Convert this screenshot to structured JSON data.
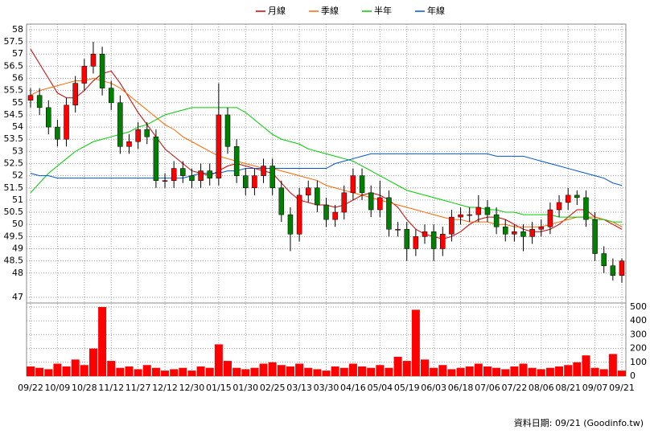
{
  "chart_data": [
    {
      "type": "candlestick",
      "open": [
        55.1,
        55.3,
        54.8,
        54.0,
        53.5,
        54.9,
        55.8,
        56.5,
        57.0,
        55.6,
        55.0,
        53.2,
        53.4,
        53.9,
        53.6,
        51.8,
        51.8,
        52.3,
        52.0,
        51.8,
        52.2,
        51.9,
        54.5,
        53.2,
        52.0,
        51.5,
        52.0,
        52.4,
        51.5,
        50.4,
        49.6,
        51.2,
        51.5,
        50.8,
        50.2,
        50.5,
        51.3,
        52.0,
        51.3,
        50.6,
        51.1,
        49.8,
        49.8,
        49.0,
        49.5,
        49.7,
        49.0,
        49.6,
        50.3,
        50.4,
        50.4,
        50.7,
        50.4,
        49.9,
        49.6,
        49.7,
        49.5,
        49.8,
        49.9,
        50.6,
        50.9,
        51.2,
        51.1,
        50.2,
        48.8,
        48.3,
        47.9
      ],
      "high": [
        55.6,
        55.6,
        55.1,
        54.3,
        55.2,
        56.1,
        56.8,
        57.5,
        57.3,
        55.9,
        55.3,
        53.7,
        54.2,
        54.2,
        53.9,
        52.1,
        52.6,
        52.6,
        52.3,
        52.5,
        52.5,
        55.8,
        54.8,
        53.5,
        52.3,
        52.3,
        52.7,
        52.7,
        51.8,
        50.7,
        51.5,
        51.8,
        51.8,
        51.1,
        50.8,
        51.6,
        52.3,
        52.3,
        51.6,
        51.8,
        51.4,
        50.1,
        50.1,
        49.8,
        50.0,
        50.0,
        49.9,
        50.6,
        50.7,
        50.7,
        51.2,
        51.0,
        50.7,
        50.2,
        50.0,
        50.0,
        50.1,
        50.2,
        50.9,
        51.2,
        51.5,
        51.4,
        51.4,
        50.5,
        49.1,
        48.6,
        48.6
      ],
      "low": [
        54.8,
        54.5,
        53.7,
        53.2,
        53.2,
        54.6,
        55.5,
        56.2,
        55.3,
        54.7,
        52.9,
        52.9,
        53.1,
        53.3,
        51.5,
        51.5,
        51.5,
        51.7,
        51.5,
        51.5,
        51.6,
        51.6,
        52.9,
        51.7,
        51.2,
        51.2,
        51.7,
        51.2,
        50.1,
        48.9,
        49.3,
        50.9,
        50.5,
        49.9,
        49.9,
        50.2,
        51.0,
        51.0,
        50.3,
        50.3,
        49.5,
        49.5,
        48.5,
        48.7,
        49.2,
        48.5,
        48.7,
        49.3,
        50.0,
        50.1,
        50.1,
        50.1,
        49.6,
        49.3,
        49.3,
        48.9,
        49.2,
        49.5,
        49.6,
        50.3,
        50.6,
        50.8,
        49.9,
        48.5,
        48.0,
        47.7,
        47.6
      ],
      "close": [
        55.3,
        54.8,
        54.0,
        53.5,
        54.9,
        55.8,
        56.5,
        57.0,
        55.6,
        55.0,
        53.2,
        53.4,
        53.9,
        53.6,
        51.8,
        51.8,
        52.3,
        52.0,
        51.8,
        52.2,
        51.9,
        54.5,
        53.2,
        52.0,
        51.5,
        52.0,
        52.4,
        51.5,
        50.4,
        49.6,
        51.2,
        51.5,
        50.8,
        50.2,
        50.5,
        51.3,
        52.0,
        51.3,
        50.6,
        51.1,
        49.8,
        49.8,
        49.0,
        49.5,
        49.7,
        49.0,
        49.6,
        50.3,
        50.4,
        50.4,
        50.7,
        50.4,
        49.9,
        49.6,
        49.7,
        49.5,
        49.8,
        49.9,
        50.6,
        50.9,
        51.2,
        51.1,
        50.2,
        48.8,
        48.3,
        47.9,
        48.5
      ],
      "up_color": "#ff0000",
      "down_color": "#008000",
      "series": [
        {
          "name": "月線",
          "color": "#cc0000",
          "values": [
            57.2,
            56.6,
            56.0,
            55.4,
            55.2,
            55.2,
            55.5,
            55.9,
            56.2,
            56.3,
            55.8,
            55.2,
            54.6,
            54.1,
            53.6,
            53.1,
            52.8,
            52.5,
            52.2,
            52.1,
            52.0,
            52.2,
            52.4,
            52.5,
            52.4,
            52.3,
            52.2,
            52.1,
            51.7,
            51.3,
            51.0,
            50.9,
            50.8,
            50.8,
            50.7,
            50.8,
            51.0,
            51.2,
            51.3,
            51.2,
            51.0,
            50.7,
            50.2,
            49.8,
            49.6,
            49.5,
            49.4,
            49.5,
            49.7,
            50.0,
            50.2,
            50.3,
            50.3,
            50.2,
            50.0,
            49.8,
            49.7,
            49.7,
            49.8,
            50.0,
            50.3,
            50.6,
            50.6,
            50.3,
            50.2,
            50.0,
            49.8
          ]
        },
        {
          "name": "季線",
          "color": "#ff6600",
          "values": [
            55.3,
            55.5,
            55.6,
            55.7,
            55.8,
            55.9,
            55.9,
            56.0,
            55.9,
            55.8,
            55.6,
            55.3,
            55.0,
            54.7,
            54.4,
            54.1,
            53.9,
            53.6,
            53.4,
            53.2,
            53.0,
            52.8,
            52.7,
            52.6,
            52.5,
            52.4,
            52.3,
            52.3,
            52.2,
            52.1,
            52.0,
            51.9,
            51.8,
            51.6,
            51.5,
            51.4,
            51.3,
            51.2,
            51.1,
            51.0,
            50.9,
            50.8,
            50.7,
            50.6,
            50.5,
            50.4,
            50.3,
            50.2,
            50.2,
            50.1,
            50.1,
            50.1,
            50.0,
            50.0,
            49.9,
            49.9,
            49.9,
            49.9,
            50.0,
            50.1,
            50.2,
            50.3,
            50.3,
            50.3,
            50.2,
            50.1,
            49.9
          ]
        },
        {
          "name": "半年",
          "color": "#00cc00",
          "values": [
            51.3,
            51.7,
            52.1,
            52.4,
            52.7,
            53.0,
            53.2,
            53.4,
            53.5,
            53.6,
            53.7,
            53.8,
            54.0,
            54.1,
            54.3,
            54.5,
            54.6,
            54.7,
            54.8,
            54.8,
            54.8,
            54.8,
            54.8,
            54.8,
            54.6,
            54.3,
            54.0,
            53.7,
            53.5,
            53.4,
            53.3,
            53.1,
            53.0,
            52.9,
            52.8,
            52.7,
            52.6,
            52.4,
            52.2,
            52.0,
            51.8,
            51.6,
            51.4,
            51.3,
            51.2,
            51.1,
            51.0,
            50.9,
            50.8,
            50.7,
            50.7,
            50.6,
            50.6,
            50.5,
            50.5,
            50.4,
            50.4,
            50.4,
            50.4,
            50.3,
            50.3,
            50.3,
            50.3,
            50.2,
            50.2,
            50.1,
            50.1
          ]
        },
        {
          "name": "年線",
          "color": "#0055cc",
          "values": [
            52.1,
            52.0,
            52.0,
            51.9,
            51.9,
            51.9,
            51.9,
            51.9,
            51.9,
            51.9,
            51.9,
            51.9,
            51.9,
            51.9,
            51.9,
            51.9,
            51.9,
            51.9,
            52.0,
            52.1,
            52.1,
            52.1,
            52.2,
            52.2,
            52.3,
            52.3,
            52.3,
            52.3,
            52.3,
            52.3,
            52.3,
            52.3,
            52.3,
            52.3,
            52.5,
            52.6,
            52.7,
            52.8,
            52.9,
            52.9,
            52.9,
            52.9,
            52.9,
            52.9,
            52.9,
            52.9,
            52.9,
            52.9,
            52.9,
            52.9,
            52.9,
            52.9,
            52.8,
            52.8,
            52.8,
            52.8,
            52.7,
            52.6,
            52.5,
            52.4,
            52.3,
            52.2,
            52.1,
            52.0,
            51.9,
            51.7,
            51.6
          ]
        }
      ],
      "ylim": [
        46.77,
        58.23
      ],
      "yticks": [
        47,
        48,
        48.5,
        49,
        49.5,
        50,
        50.5,
        51,
        51.5,
        52,
        52.5,
        53,
        53.5,
        54,
        54.5,
        55,
        55.5,
        56,
        56.5,
        57,
        57.5,
        58
      ],
      "grid": true,
      "legend": "top"
    },
    {
      "type": "bar",
      "categories": [
        "09/22",
        null,
        null,
        "10/09",
        null,
        null,
        "10/28",
        null,
        null,
        "11/12",
        null,
        null,
        "11/27",
        null,
        null,
        "12/12",
        null,
        null,
        "12/30",
        null,
        null,
        "01/15",
        null,
        null,
        "01/30",
        null,
        null,
        "02/25",
        null,
        null,
        "03/13",
        null,
        null,
        "03/30",
        null,
        null,
        "04/16",
        null,
        null,
        "05/04",
        null,
        null,
        "05/19",
        null,
        null,
        "06/03",
        null,
        null,
        "06/18",
        null,
        null,
        "07/06",
        null,
        null,
        "07/22",
        null,
        null,
        "08/06",
        null,
        null,
        "08/21",
        null,
        null,
        "09/07",
        null,
        null,
        "09/21"
      ],
      "values": [
        70,
        60,
        50,
        90,
        70,
        120,
        80,
        200,
        500,
        110,
        60,
        70,
        50,
        80,
        60,
        40,
        50,
        60,
        40,
        70,
        60,
        230,
        110,
        60,
        50,
        60,
        90,
        100,
        80,
        70,
        90,
        60,
        50,
        40,
        70,
        60,
        90,
        70,
        60,
        80,
        60,
        140,
        110,
        480,
        120,
        60,
        80,
        50,
        60,
        70,
        90,
        70,
        60,
        50,
        70,
        90,
        60,
        50,
        60,
        70,
        80,
        100,
        150,
        60,
        50,
        160,
        40
      ],
      "color": "#ff0000",
      "ylim": [
        0,
        529
      ],
      "yticks": [
        0,
        100,
        200,
        300,
        400,
        500
      ],
      "grid": true,
      "note": "資料日期: 09/21  (Goodinfo.tw)"
    }
  ]
}
